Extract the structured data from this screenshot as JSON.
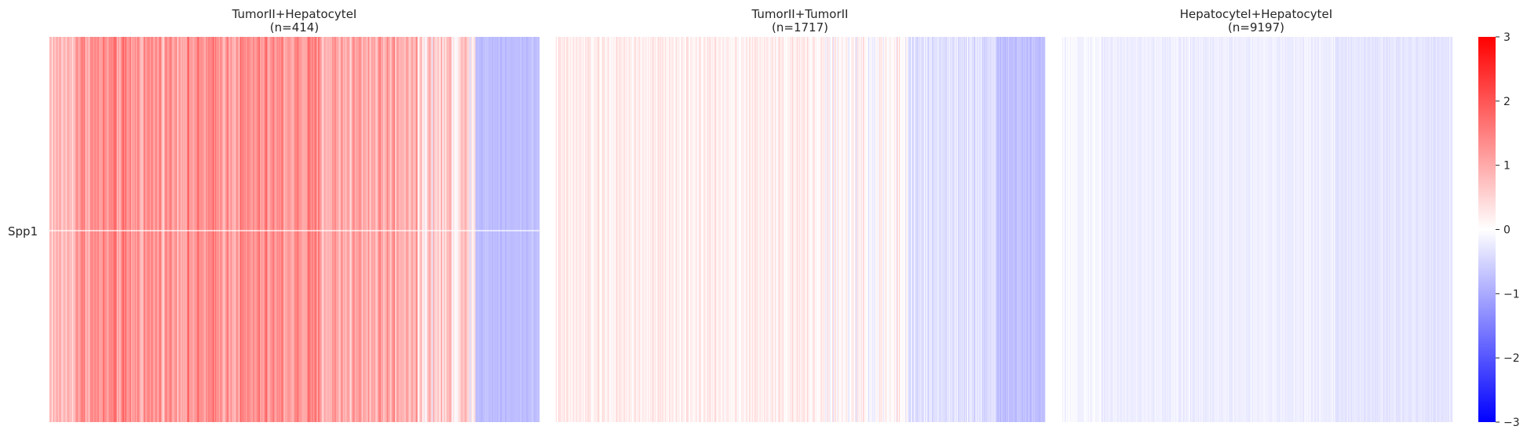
{
  "chart_data": {
    "type": "heatmap",
    "row_labels": [
      "Spp1"
    ],
    "panels": [
      {
        "title_line1": "TumorII+HepatocyteI",
        "title_line2": "(n=414)",
        "n": 414,
        "profile": {
          "segments": [
            {
              "from": 0.0,
              "to": 0.05,
              "mean": 0.8,
              "spread": 0.5
            },
            {
              "from": 0.05,
              "to": 0.55,
              "mean": 1.25,
              "spread": 0.55
            },
            {
              "from": 0.55,
              "to": 0.75,
              "mean": 1.05,
              "spread": 0.6
            },
            {
              "from": 0.75,
              "to": 0.87,
              "mean": 0.55,
              "spread": 0.7
            },
            {
              "from": 0.87,
              "to": 1.0,
              "mean": -0.75,
              "spread": 0.15
            }
          ]
        }
      },
      {
        "title_line1": "TumorII+TumorII",
        "title_line2": "(n=1717)",
        "n": 1717,
        "profile": {
          "segments": [
            {
              "from": 0.0,
              "to": 0.55,
              "mean": 0.2,
              "spread": 0.25
            },
            {
              "from": 0.55,
              "to": 0.72,
              "mean": 0.05,
              "spread": 0.4
            },
            {
              "from": 0.72,
              "to": 0.9,
              "mean": -0.35,
              "spread": 0.25
            },
            {
              "from": 0.9,
              "to": 1.0,
              "mean": -0.75,
              "spread": 0.15
            }
          ]
        }
      },
      {
        "title_line1": "HepatocyteI+HepatocyteI",
        "title_line2": "(n=9197)",
        "n": 9197,
        "profile": {
          "segments": [
            {
              "from": 0.0,
              "to": 0.1,
              "mean": -0.1,
              "spread": 0.12
            },
            {
              "from": 0.1,
              "to": 0.7,
              "mean": -0.2,
              "spread": 0.12
            },
            {
              "from": 0.7,
              "to": 1.0,
              "mean": -0.3,
              "spread": 0.12
            }
          ]
        }
      }
    ],
    "colorbar": {
      "min": -3,
      "max": 3,
      "colormap": "bwr",
      "ticks": [
        3,
        2,
        1,
        0,
        -1,
        -2,
        -3
      ],
      "tick_labels": [
        "3",
        "2",
        "1",
        "0",
        "−1",
        "−2",
        "−3"
      ]
    },
    "colors": {
      "low": "#0000ff",
      "mid": "#ffffff",
      "high": "#ff0000",
      "row_separator": "#ffffff"
    }
  }
}
